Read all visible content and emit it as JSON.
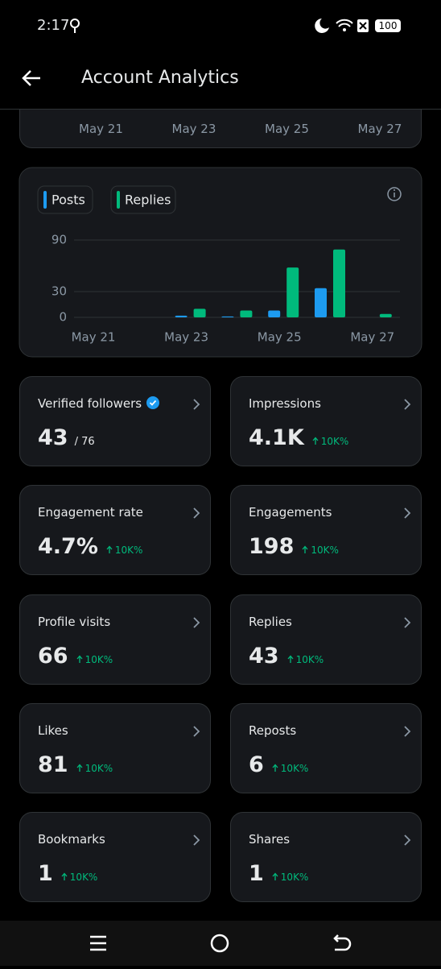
{
  "status_bar": {
    "time": "2:17",
    "battery": "100"
  },
  "header": {
    "title": "Account Analytics"
  },
  "top_card": {
    "x_labels": [
      "May 21",
      "May 23",
      "May 25",
      "May 27"
    ]
  },
  "chart_data": {
    "type": "bar",
    "categories": [
      "May 21",
      null,
      "May 23",
      null,
      "May 25",
      null,
      "May 27"
    ],
    "series": [
      {
        "name": "Posts",
        "color": "#1d9bf0",
        "values": [
          0,
          0,
          2,
          1,
          8,
          34,
          0
        ]
      },
      {
        "name": "Replies",
        "color": "#00ba7c",
        "values": [
          0,
          0,
          10,
          8,
          58,
          79,
          4
        ]
      }
    ],
    "ylim": [
      0,
      90
    ],
    "yticks": [
      0,
      30,
      90
    ],
    "grid": true
  },
  "metrics": [
    {
      "label": "Verified followers",
      "value": "43",
      "total": "/ 76"
    },
    {
      "label": "Impressions",
      "value": "4.1K",
      "change": "10K%"
    },
    {
      "label": "Engagement rate",
      "value": "4.7%",
      "change": "10K%"
    },
    {
      "label": "Engagements",
      "value": "198",
      "change": "10K%"
    },
    {
      "label": "Profile visits",
      "value": "66",
      "change": "10K%"
    },
    {
      "label": "Replies",
      "value": "43",
      "change": "10K%"
    },
    {
      "label": "Likes",
      "value": "81",
      "change": "10K%"
    },
    {
      "label": "Reposts",
      "value": "6",
      "change": "10K%"
    },
    {
      "label": "Bookmarks",
      "value": "1",
      "change": "10K%"
    },
    {
      "label": "Shares",
      "value": "1",
      "change": "10K%"
    }
  ]
}
